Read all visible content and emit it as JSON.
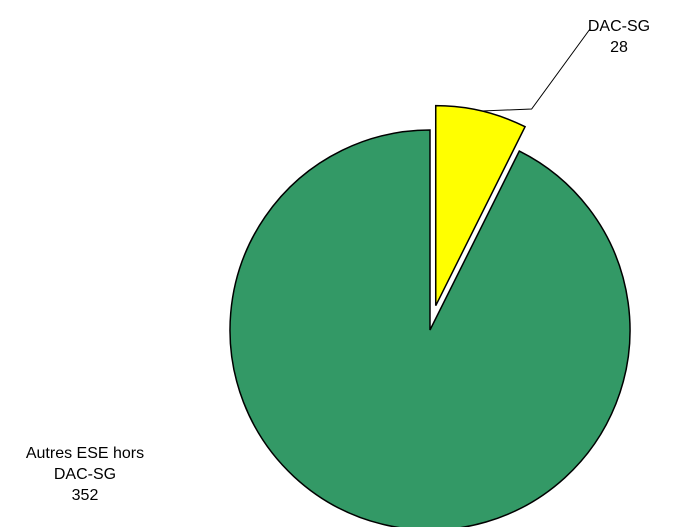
{
  "chart_data": {
    "type": "pie",
    "title": "",
    "legend": "none",
    "exploded": true,
    "slices": [
      {
        "label": "DAC-SG",
        "value": 28,
        "value_text": "28",
        "color": "#FFFF00",
        "label_lines": [
          "DAC-SG"
        ]
      },
      {
        "label": "Autres ESE hors DAC-SG",
        "value": 352,
        "value_text": "352",
        "color": "#339966",
        "label_lines": [
          "Autres ESE hors",
          "DAC-SG"
        ]
      }
    ]
  }
}
